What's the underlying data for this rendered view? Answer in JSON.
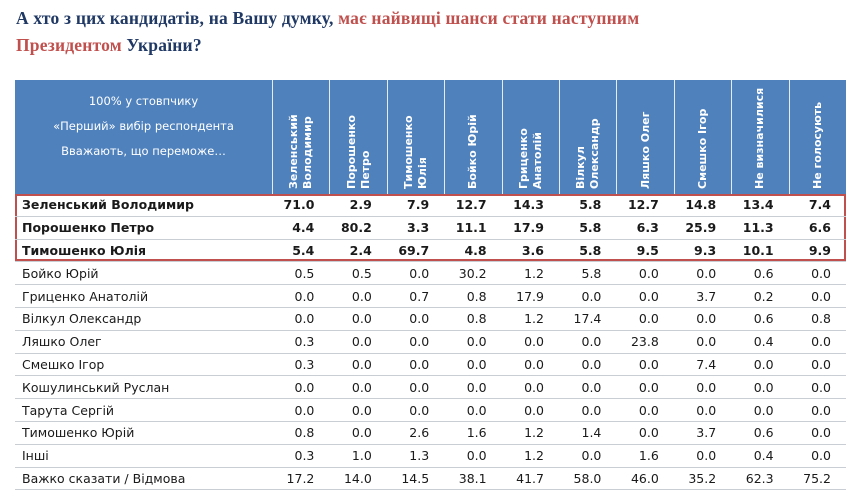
{
  "title": {
    "line1": {
      "dark": "А хто з цих кандидатів, на Вашу думку, ",
      "red": "має найвищі шанси стати наступним"
    },
    "line2": {
      "red": "Президентом",
      "dark": " України?"
    }
  },
  "corner": {
    "lines": [
      "100% у стовпчику",
      "«Перший» вибір респондента",
      "Вважають, що переможе…"
    ]
  },
  "colors": {
    "header_blue": "#4F81BD",
    "title_navy": "#1F3864",
    "accent_red": "#C0504D",
    "row_border": "#C9CED4",
    "text": "#1A1A1A"
  },
  "chart_data": {
    "type": "table",
    "title": "А хто з цих кандидатів, на Вашу думку, має найвищі шанси стати наступним Президентом України?",
    "unit": "% у стовпчику («Перший» вибір респондента)",
    "columns": [
      "Зеленський Володимир",
      "Порошенко Петро",
      "Тимошенко Юлія",
      "Бойко Юрій",
      "Гриценко Анатолій",
      "Вілкул Олександр",
      "Ляшко Олег",
      "Смешко Ігор",
      "Не визначилися",
      "Не голосують"
    ],
    "rows": [
      {
        "label": "Зеленський Володимир",
        "highlighted": true,
        "values": [
          71.0,
          2.9,
          7.9,
          12.7,
          14.3,
          5.8,
          12.7,
          14.8,
          13.4,
          7.4
        ]
      },
      {
        "label": "Порошенко Петро",
        "highlighted": true,
        "values": [
          4.4,
          80.2,
          3.3,
          11.1,
          17.9,
          5.8,
          6.3,
          25.9,
          11.3,
          6.6
        ]
      },
      {
        "label": "Тимошенко Юлія",
        "highlighted": true,
        "values": [
          5.4,
          2.4,
          69.7,
          4.8,
          3.6,
          5.8,
          9.5,
          9.3,
          10.1,
          9.9
        ]
      },
      {
        "label": "Бойко Юрій",
        "highlighted": false,
        "values": [
          0.5,
          0.5,
          0.0,
          30.2,
          1.2,
          5.8,
          0.0,
          0.0,
          0.6,
          0.0
        ]
      },
      {
        "label": "Гриценко Анатолій",
        "highlighted": false,
        "values": [
          0.0,
          0.0,
          0.7,
          0.8,
          17.9,
          0.0,
          0.0,
          3.7,
          0.2,
          0.0
        ]
      },
      {
        "label": "Вілкул Олександр",
        "highlighted": false,
        "values": [
          0.0,
          0.0,
          0.0,
          0.8,
          1.2,
          17.4,
          0.0,
          0.0,
          0.6,
          0.8
        ]
      },
      {
        "label": "Ляшко Олег",
        "highlighted": false,
        "values": [
          0.3,
          0.0,
          0.0,
          0.0,
          0.0,
          0.0,
          23.8,
          0.0,
          0.4,
          0.0
        ]
      },
      {
        "label": "Смешко Ігор",
        "highlighted": false,
        "values": [
          0.3,
          0.0,
          0.0,
          0.0,
          0.0,
          0.0,
          0.0,
          7.4,
          0.0,
          0.0
        ]
      },
      {
        "label": "Кошулинський Руслан",
        "highlighted": false,
        "values": [
          0.0,
          0.0,
          0.0,
          0.0,
          0.0,
          0.0,
          0.0,
          0.0,
          0.0,
          0.0
        ]
      },
      {
        "label": "Тарута Сергій",
        "highlighted": false,
        "values": [
          0.0,
          0.0,
          0.0,
          0.0,
          0.0,
          0.0,
          0.0,
          0.0,
          0.0,
          0.0
        ]
      },
      {
        "label": "Тимошенко Юрій",
        "highlighted": false,
        "values": [
          0.8,
          0.0,
          2.6,
          1.6,
          1.2,
          1.4,
          0.0,
          3.7,
          0.6,
          0.0
        ]
      },
      {
        "label": "Інші",
        "highlighted": false,
        "values": [
          0.3,
          1.0,
          1.3,
          0.0,
          1.2,
          0.0,
          1.6,
          0.0,
          0.4,
          0.0
        ]
      },
      {
        "label": "Важко сказати / Відмова",
        "highlighted": false,
        "values": [
          17.2,
          14.0,
          14.5,
          38.1,
          41.7,
          58.0,
          46.0,
          35.2,
          62.3,
          75.2
        ]
      }
    ]
  }
}
